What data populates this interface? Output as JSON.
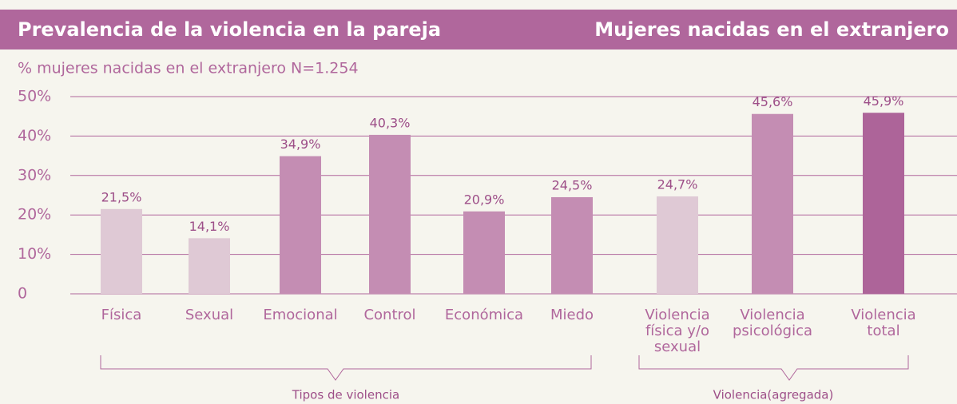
{
  "chart_data": {
    "type": "bar",
    "title": "Prevalencia de la violencia en la pareja",
    "title_right": "Mujeres nacidas en el extranjero",
    "subtitle": "% mujeres nacidas en el extranjero N=1.254",
    "categories": [
      "Física",
      "Sexual",
      "Emocional",
      "Control",
      "Económica",
      "Miedo",
      "Violencia física y/o sexual",
      "Violencia psicológica",
      "Violencia total"
    ],
    "values": [
      21.5,
      14.1,
      34.9,
      40.3,
      20.9,
      24.5,
      24.7,
      45.6,
      45.9
    ],
    "value_labels": [
      "21,5%",
      "14,1%",
      "34,9%",
      "40,3%",
      "20,9%",
      "24,5%",
      "24,7%",
      "45,6%",
      "45,9%"
    ],
    "colors": [
      "#dfc9d5",
      "#dfc9d5",
      "#c48db3",
      "#c48db3",
      "#c48db3",
      "#c48db3",
      "#dfc9d5",
      "#c48db3",
      "#ad6499"
    ],
    "group_labels": [
      "Tipos de violencia",
      "Violencia(agregada)"
    ],
    "ylim": [
      0,
      50
    ],
    "yticks": [
      0,
      {
        "value": 10,
        "label": "10%"
      },
      {
        "value": 20,
        "label": "20%"
      },
      {
        "value": 30,
        "label": "30%"
      },
      {
        "value": 40,
        "label": "40%"
      },
      {
        "value": 50,
        "label": "50%"
      }
    ],
    "grid": true
  }
}
